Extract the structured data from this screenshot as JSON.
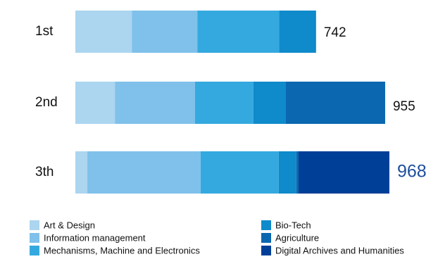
{
  "chart_data": {
    "type": "stacked-bar-horizontal",
    "categories": [
      "1st",
      "2nd",
      "3th"
    ],
    "series": [
      {
        "name": "Art & Design",
        "color": "#acd5f0",
        "values": [
          174,
          122,
          37
        ]
      },
      {
        "name": "Information management",
        "color": "#7fc1ea",
        "values": [
          202,
          247,
          349
        ]
      },
      {
        "name": "Mechanisms, Machine and Electronics",
        "color": "#34a9df",
        "values": [
          252,
          180,
          241
        ]
      },
      {
        "name": "Bio-Tech",
        "color": "#0f8acb",
        "values": [
          114,
          100,
          54
        ]
      },
      {
        "name": "Agriculture",
        "color": "#0a67b0",
        "values": [
          0,
          306,
          7
        ]
      },
      {
        "name": "Digital Archives and Humanities",
        "color": "#003f98",
        "values": [
          0,
          0,
          280
        ]
      }
    ],
    "totals": [
      742,
      955,
      968
    ],
    "highlight_color": "#1f4e9a"
  }
}
